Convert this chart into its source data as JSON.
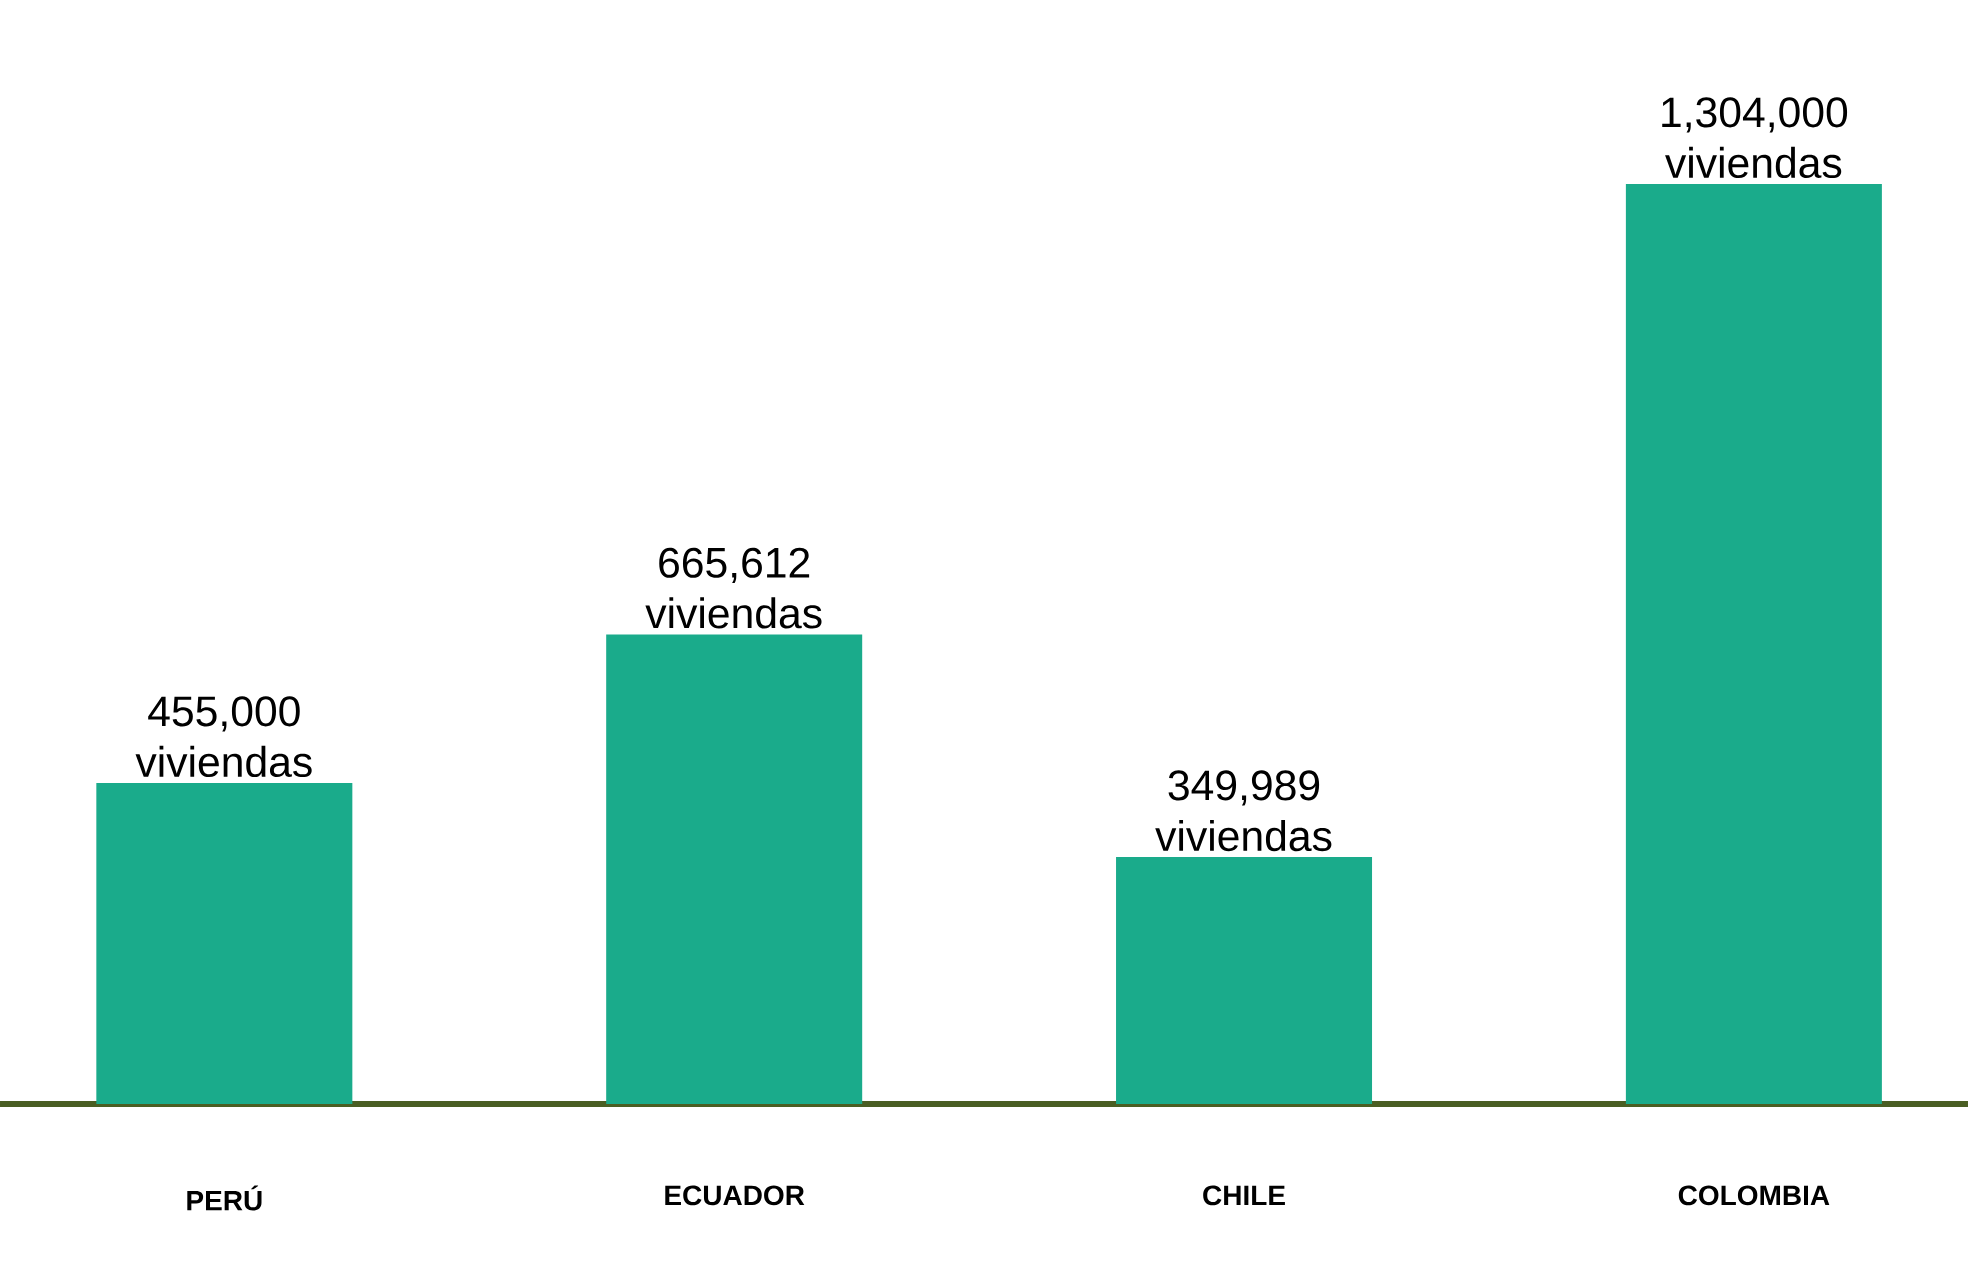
{
  "chart_data": {
    "type": "bar",
    "categories": [
      "PERÚ",
      "ECUADOR",
      "CHILE",
      "COLOMBIA"
    ],
    "values": [
      455000,
      665612,
      349989,
      1304000
    ],
    "value_labels": [
      "455,000 viviendas",
      "665,612 viviendas",
      "349,989 viviendas",
      "1,304,000 viviendas"
    ],
    "color": "#1aab8b"
  }
}
